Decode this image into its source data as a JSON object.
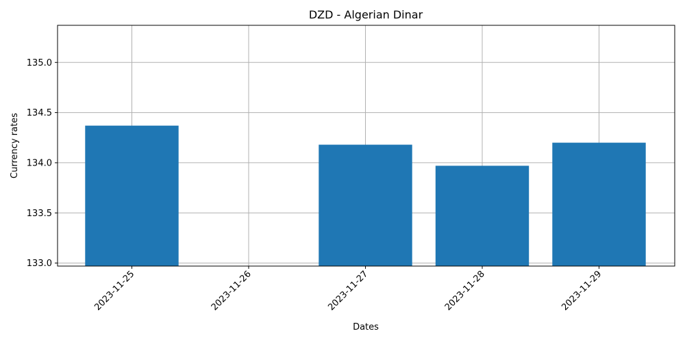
{
  "chart_data": {
    "type": "bar",
    "title": "DZD - Algerian Dinar",
    "xlabel": "Dates",
    "ylabel": "Currency rates",
    "categories": [
      "2023-11-25",
      "2023-11-26",
      "2023-11-27",
      "2023-11-28",
      "2023-11-29"
    ],
    "values": [
      134.37,
      null,
      134.18,
      133.97,
      134.2
    ],
    "ylim": [
      132.97,
      135.37
    ],
    "yticks": [
      "133.0",
      "133.5",
      "134.0",
      "134.5",
      "135.0"
    ],
    "grid": true,
    "bar_color": "#1f77b4",
    "grid_color": "#b0b0b0"
  }
}
